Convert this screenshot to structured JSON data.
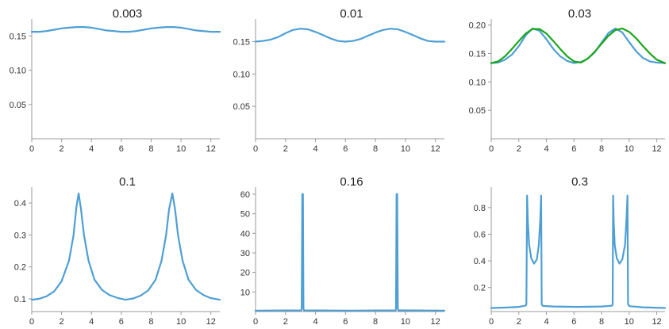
{
  "colors": {
    "blue": "#4f9fd4",
    "green": "#1aa61a"
  },
  "chart_data": [
    {
      "type": "line",
      "title": "0.003",
      "xlim": [
        0,
        12.6
      ],
      "ylim": [
        0,
        0.17
      ],
      "xticks": [
        0,
        2,
        4,
        6,
        8,
        10,
        12
      ],
      "yticks": [
        0.05,
        0.1,
        0.15
      ],
      "ytick_labels": [
        "0.05",
        "0.10",
        "0.15"
      ],
      "series": [
        {
          "color": "blue",
          "x": [
            0,
            0.5,
            1,
            1.5,
            2,
            2.5,
            3,
            3.5,
            4,
            4.5,
            5,
            5.5,
            6,
            6.5,
            7,
            7.5,
            8,
            8.5,
            9,
            9.5,
            10,
            10.5,
            11,
            11.5,
            12,
            12.6
          ],
          "y": [
            0.156,
            0.156,
            0.157,
            0.159,
            0.161,
            0.162,
            0.163,
            0.163,
            0.162,
            0.16,
            0.158,
            0.157,
            0.156,
            0.156,
            0.157,
            0.159,
            0.161,
            0.162,
            0.163,
            0.163,
            0.162,
            0.16,
            0.158,
            0.157,
            0.156,
            0.156
          ]
        }
      ]
    },
    {
      "type": "line",
      "title": "0.01",
      "xlim": [
        0,
        12.6
      ],
      "ylim": [
        0,
        0.18
      ],
      "xticks": [
        0,
        2,
        4,
        6,
        8,
        10,
        12
      ],
      "yticks": [
        0.05,
        0.1,
        0.15
      ],
      "ytick_labels": [
        "0.05",
        "0.10",
        "0.15"
      ],
      "series": [
        {
          "color": "blue",
          "x": [
            0,
            0.5,
            1,
            1.5,
            2,
            2.5,
            3,
            3.5,
            4,
            4.5,
            5,
            5.5,
            6,
            6.5,
            7,
            7.5,
            8,
            8.5,
            9,
            9.5,
            10,
            10.5,
            11,
            11.5,
            12,
            12.6
          ],
          "y": [
            0.15,
            0.151,
            0.153,
            0.157,
            0.163,
            0.168,
            0.17,
            0.169,
            0.165,
            0.16,
            0.155,
            0.151,
            0.15,
            0.151,
            0.154,
            0.159,
            0.164,
            0.168,
            0.17,
            0.169,
            0.165,
            0.16,
            0.155,
            0.151,
            0.15,
            0.15
          ]
        }
      ]
    },
    {
      "type": "line",
      "title": "0.03",
      "xlim": [
        0,
        12.6
      ],
      "ylim": [
        0,
        0.205
      ],
      "xticks": [
        0,
        2,
        4,
        6,
        8,
        10,
        12
      ],
      "yticks": [
        0.05,
        0.1,
        0.15,
        0.2
      ],
      "ytick_labels": [
        "0.05",
        "0.10",
        "0.15",
        "0.20"
      ],
      "series": [
        {
          "color": "blue",
          "x": [
            0,
            0.5,
            1,
            1.5,
            2,
            2.5,
            3,
            3.5,
            4,
            4.5,
            5,
            5.5,
            6,
            6.5,
            7,
            7.5,
            8,
            8.5,
            9,
            9.5,
            10,
            10.5,
            11,
            11.5,
            12,
            12.6
          ],
          "y": [
            0.133,
            0.134,
            0.139,
            0.148,
            0.163,
            0.182,
            0.194,
            0.19,
            0.175,
            0.158,
            0.145,
            0.137,
            0.133,
            0.135,
            0.141,
            0.152,
            0.169,
            0.186,
            0.194,
            0.187,
            0.17,
            0.154,
            0.142,
            0.136,
            0.134,
            0.133
          ]
        },
        {
          "color": "green",
          "x": [
            0,
            0.5,
            1,
            1.5,
            2,
            2.5,
            3,
            3.5,
            4,
            4.5,
            5,
            5.5,
            6,
            6.5,
            7,
            7.5,
            8,
            8.5,
            9,
            9.5,
            10,
            10.5,
            11,
            11.5,
            12,
            12.6
          ],
          "y": [
            0.133,
            0.136,
            0.145,
            0.158,
            0.172,
            0.185,
            0.193,
            0.193,
            0.185,
            0.172,
            0.158,
            0.145,
            0.136,
            0.134,
            0.141,
            0.153,
            0.167,
            0.181,
            0.191,
            0.194,
            0.188,
            0.177,
            0.163,
            0.15,
            0.139,
            0.133
          ]
        }
      ]
    },
    {
      "type": "line",
      "title": "0.1",
      "xlim": [
        0,
        12.6
      ],
      "ylim": [
        0.06,
        0.44
      ],
      "xticks": [
        0,
        2,
        4,
        6,
        8,
        10,
        12
      ],
      "yticks": [
        0.1,
        0.2,
        0.3,
        0.4
      ],
      "ytick_labels": [
        "0.1",
        "0.2",
        "0.3",
        "0.4"
      ],
      "series": [
        {
          "color": "blue",
          "x": [
            0,
            0.5,
            1,
            1.5,
            2,
            2.5,
            2.8,
            3.0,
            3.14,
            3.3,
            3.5,
            3.8,
            4.2,
            4.7,
            5.2,
            5.8,
            6.28,
            6.8,
            7.3,
            7.8,
            8.3,
            8.7,
            9.0,
            9.2,
            9.42,
            9.6,
            9.8,
            10.1,
            10.5,
            11,
            11.5,
            12,
            12.6
          ],
          "y": [
            0.097,
            0.1,
            0.108,
            0.123,
            0.155,
            0.22,
            0.3,
            0.39,
            0.43,
            0.38,
            0.3,
            0.22,
            0.16,
            0.128,
            0.112,
            0.102,
            0.097,
            0.101,
            0.11,
            0.126,
            0.16,
            0.22,
            0.3,
            0.38,
            0.43,
            0.38,
            0.3,
            0.22,
            0.16,
            0.128,
            0.112,
            0.102,
            0.097
          ]
        }
      ]
    },
    {
      "type": "line",
      "title": "0.16",
      "xlim": [
        0,
        12.6
      ],
      "ylim": [
        0,
        62
      ],
      "xticks": [
        0,
        2,
        4,
        6,
        8,
        10,
        12
      ],
      "yticks": [
        10,
        20,
        30,
        40,
        50,
        60
      ],
      "ytick_labels": [
        "10",
        "20",
        "30",
        "40",
        "50",
        "60"
      ],
      "series": [
        {
          "color": "blue",
          "x": [
            0,
            3.05,
            3.08,
            3.12,
            3.16,
            3.2,
            3.23,
            6.28,
            9.34,
            9.37,
            9.41,
            9.45,
            9.49,
            9.52,
            12.6
          ],
          "y": [
            0.5,
            0.6,
            1.5,
            60,
            60,
            1.5,
            0.6,
            0.5,
            0.6,
            1.5,
            60,
            60,
            1.5,
            0.6,
            0.5
          ]
        }
      ]
    },
    {
      "type": "line",
      "title": "0.3",
      "xlim": [
        0,
        12.6
      ],
      "ylim": [
        0.02,
        0.93
      ],
      "xticks": [
        0,
        2,
        4,
        6,
        8,
        10,
        12
      ],
      "yticks": [
        0.2,
        0.4,
        0.6,
        0.8
      ],
      "ytick_labels": [
        "0.2",
        "0.4",
        "0.6",
        "0.8"
      ],
      "series": [
        {
          "color": "blue",
          "x": [
            0,
            1,
            2,
            2.5,
            2.55,
            2.6,
            2.65,
            2.75,
            2.9,
            3.1,
            3.3,
            3.45,
            3.55,
            3.62,
            3.66,
            3.7,
            3.75,
            4.5,
            6.28,
            8,
            8.75,
            8.8,
            8.84,
            8.88,
            8.95,
            9.1,
            9.3,
            9.5,
            9.7,
            9.8,
            9.88,
            9.92,
            9.97,
            10.05,
            11,
            12.6
          ],
          "y": [
            0.047,
            0.05,
            0.055,
            0.065,
            0.075,
            0.89,
            0.7,
            0.52,
            0.42,
            0.38,
            0.41,
            0.52,
            0.7,
            0.89,
            0.075,
            0.068,
            0.062,
            0.058,
            0.055,
            0.058,
            0.064,
            0.075,
            0.89,
            0.7,
            0.52,
            0.42,
            0.38,
            0.41,
            0.52,
            0.7,
            0.89,
            0.075,
            0.066,
            0.06,
            0.052,
            0.047
          ]
        }
      ]
    }
  ]
}
